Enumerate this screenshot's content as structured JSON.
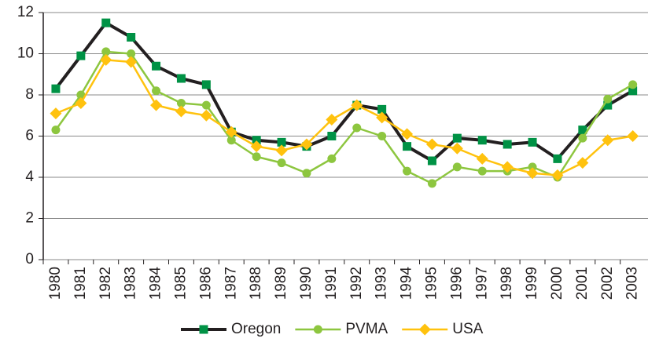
{
  "chart_data": {
    "type": "line",
    "categories": [
      "1980",
      "1981",
      "1982",
      "1983",
      "1984",
      "1985",
      "1986",
      "1987",
      "1988",
      "1989",
      "1990",
      "1991",
      "1992",
      "1993",
      "1994",
      "1995",
      "1996",
      "1997",
      "1998",
      "1999",
      "2000",
      "2001",
      "2002",
      "2003"
    ],
    "series": [
      {
        "name": "Oregon",
        "color": "#231f20",
        "marker_color": "#009245",
        "marker": "square",
        "values": [
          8.3,
          9.9,
          11.5,
          10.8,
          9.4,
          8.8,
          8.5,
          6.2,
          5.8,
          5.7,
          5.5,
          6.0,
          7.5,
          7.3,
          5.5,
          4.8,
          5.9,
          5.8,
          5.6,
          5.7,
          4.9,
          6.3,
          7.5,
          8.2
        ]
      },
      {
        "name": "PVMA",
        "color": "#8dc63f",
        "marker_color": "#8dc63f",
        "marker": "circle",
        "values": [
          6.3,
          8.0,
          10.1,
          10.0,
          8.2,
          7.6,
          7.5,
          5.8,
          5.0,
          4.7,
          4.2,
          4.9,
          6.4,
          6.0,
          4.3,
          3.7,
          4.5,
          4.3,
          4.3,
          4.5,
          4.0,
          5.9,
          7.8,
          8.5
        ]
      },
      {
        "name": "USA",
        "color": "#ffc20e",
        "marker_color": "#ffc20e",
        "marker": "diamond",
        "values": [
          7.1,
          7.6,
          9.7,
          9.6,
          7.5,
          7.2,
          7.0,
          6.2,
          5.5,
          5.3,
          5.6,
          6.8,
          7.5,
          6.9,
          6.1,
          5.6,
          5.4,
          4.9,
          4.5,
          4.2,
          4.1,
          4.7,
          5.8,
          6.0
        ]
      }
    ],
    "ylim": [
      0,
      12
    ],
    "yticks": [
      0,
      2,
      4,
      6,
      8,
      10,
      12
    ],
    "grid": true
  }
}
